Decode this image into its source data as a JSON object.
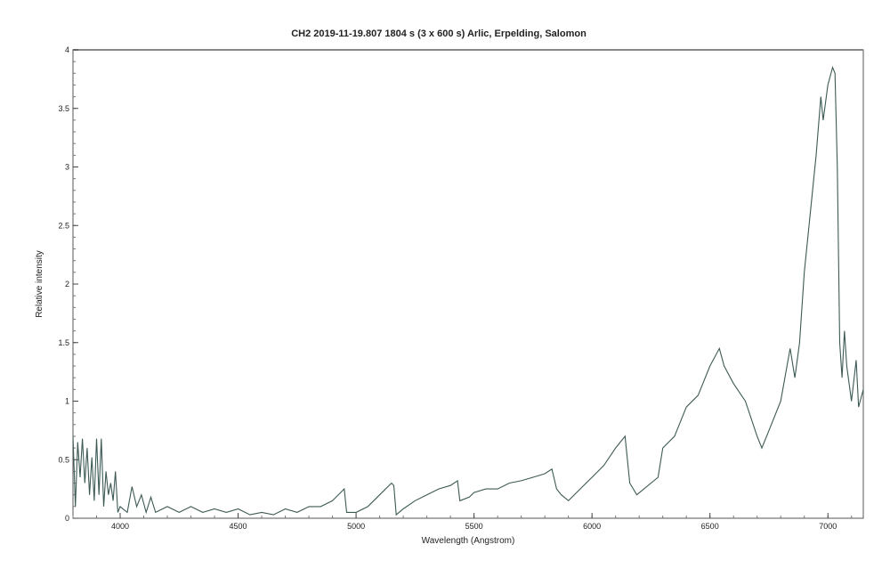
{
  "chart_data": {
    "type": "line",
    "title": "CH2  2019-11-19.807  1804 s (3 x 600 s)  Arlic, Erpelding, Salomon",
    "xlabel": "Wavelength (Angstrom)",
    "ylabel": "Relative intensity",
    "xlim": [
      3800,
      7150
    ],
    "ylim": [
      0,
      4
    ],
    "xticks": [
      4000,
      4500,
      5000,
      5500,
      6000,
      6500,
      7000
    ],
    "yticks": [
      0,
      0.5,
      1,
      1.5,
      2,
      2.5,
      3,
      3.5,
      4
    ],
    "ytick_labels": [
      "0",
      "0.5",
      "1",
      "1.5",
      "2",
      "2.5",
      "3",
      "3.5",
      "4"
    ],
    "grid": false,
    "line_color": "#3d5a55",
    "series": [
      {
        "x": [
          3800,
          3810,
          3820,
          3830,
          3840,
          3850,
          3860,
          3870,
          3880,
          3890,
          3900,
          3910,
          3920,
          3930,
          3940,
          3950,
          3960,
          3970,
          3980,
          3990,
          4000,
          4030,
          4050,
          4070,
          4090,
          4110,
          4130,
          4150,
          4200,
          4250,
          4300,
          4350,
          4400,
          4450,
          4500,
          4550,
          4600,
          4650,
          4700,
          4750,
          4800,
          4850,
          4900,
          4950,
          4960,
          5000,
          5050,
          5100,
          5150,
          5160,
          5170,
          5200,
          5250,
          5300,
          5350,
          5400,
          5430,
          5440,
          5480,
          5500,
          5550,
          5600,
          5650,
          5700,
          5750,
          5800,
          5830,
          5850,
          5870,
          5900,
          5950,
          6000,
          6050,
          6100,
          6140,
          6160,
          6190,
          6220,
          6280,
          6300,
          6350,
          6400,
          6450,
          6500,
          6540,
          6560,
          6600,
          6650,
          6700,
          6720,
          6750,
          6800,
          6840,
          6860,
          6880,
          6900,
          6930,
          6950,
          6970,
          6980,
          7000,
          7020,
          7030,
          7040,
          7050,
          7060,
          7070,
          7080,
          7100,
          7120,
          7130,
          7150
        ],
        "y": [
          0.7,
          0.1,
          0.65,
          0.35,
          0.68,
          0.3,
          0.6,
          0.2,
          0.52,
          0.15,
          0.68,
          0.2,
          0.68,
          0.1,
          0.4,
          0.2,
          0.3,
          0.15,
          0.4,
          0.05,
          0.1,
          0.05,
          0.27,
          0.1,
          0.2,
          0.05,
          0.18,
          0.05,
          0.1,
          0.05,
          0.1,
          0.05,
          0.08,
          0.05,
          0.08,
          0.03,
          0.05,
          0.03,
          0.08,
          0.05,
          0.1,
          0.1,
          0.15,
          0.25,
          0.05,
          0.05,
          0.1,
          0.2,
          0.3,
          0.28,
          0.03,
          0.08,
          0.15,
          0.2,
          0.25,
          0.28,
          0.32,
          0.15,
          0.18,
          0.22,
          0.25,
          0.25,
          0.3,
          0.32,
          0.35,
          0.38,
          0.42,
          0.25,
          0.2,
          0.15,
          0.25,
          0.35,
          0.45,
          0.6,
          0.7,
          0.3,
          0.2,
          0.25,
          0.35,
          0.6,
          0.7,
          0.95,
          1.05,
          1.3,
          1.45,
          1.3,
          1.15,
          1.0,
          0.7,
          0.6,
          0.75,
          1.0,
          1.45,
          1.2,
          1.5,
          2.1,
          2.7,
          3.1,
          3.6,
          3.4,
          3.7,
          3.85,
          3.8,
          3.0,
          1.5,
          1.2,
          1.6,
          1.3,
          1.0,
          1.35,
          0.95,
          1.1
        ]
      }
    ]
  }
}
